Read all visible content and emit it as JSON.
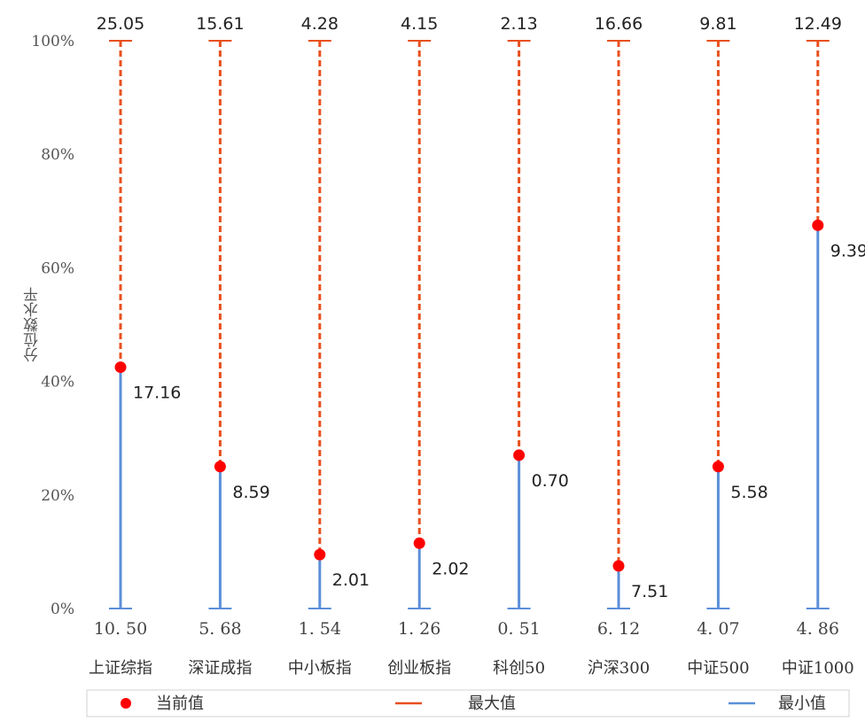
{
  "chart_data": {
    "type": "scatter",
    "ylabel": "分位数水平",
    "ylim": [
      0,
      100
    ],
    "y_ticks": [
      "0%",
      "20%",
      "40%",
      "60%",
      "80%",
      "100%"
    ],
    "y_tick_values": [
      0,
      20,
      40,
      60,
      80,
      100
    ],
    "categories": [
      "上证综指",
      "深证成指",
      "中小板指",
      "创业板指",
      "科创50",
      "沪深300",
      "中证500",
      "中证1000"
    ],
    "max_values": [
      "25.05",
      "15.61",
      "4.28",
      "4.15",
      "2.13",
      "16.66",
      "9.81",
      "12.49"
    ],
    "min_values": [
      "10.50",
      "5.68",
      "1.54",
      "1.26",
      "0.51",
      "6.12",
      "4.07",
      "4.86"
    ],
    "current_values": [
      "17.16",
      "8.59",
      "2.01",
      "2.02",
      "0.70",
      "7.51",
      "5.58",
      "9.39"
    ],
    "current_percentile": [
      42.5,
      25.0,
      9.5,
      11.5,
      27.0,
      7.5,
      25.0,
      67.5
    ],
    "series": [
      {
        "name": "当前值",
        "color": "#ff0000",
        "marker": "dot"
      },
      {
        "name": "最大值",
        "color": "#e8501f",
        "marker": "line"
      },
      {
        "name": "最小值",
        "color": "#5b8fd9",
        "marker": "line"
      }
    ],
    "legend_position": "bottom",
    "grid": false
  }
}
